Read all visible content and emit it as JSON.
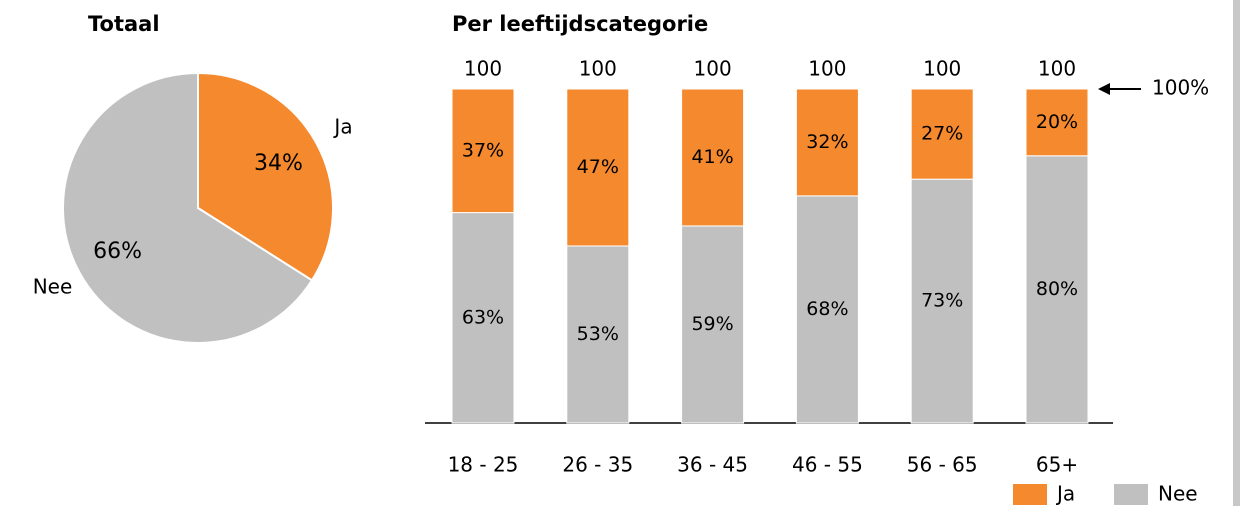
{
  "chart_data": [
    {
      "type": "pie",
      "title": "Totaal",
      "categories": [
        "Ja",
        "Nee"
      ],
      "values": [
        34,
        66
      ],
      "value_labels": [
        "34%",
        "66%"
      ],
      "colors": [
        "#f5892e",
        "#c0c0c0"
      ]
    },
    {
      "type": "bar",
      "stacked": true,
      "title": "Per leeftijdscategorie",
      "categories": [
        "18 - 25",
        "26 - 35",
        "36 - 45",
        "46 - 55",
        "56 - 65",
        "65+"
      ],
      "series": [
        {
          "name": "Ja",
          "color": "#f5892e",
          "values": [
            37,
            47,
            41,
            32,
            27,
            20
          ],
          "value_labels": [
            "37%",
            "47%",
            "41%",
            "32%",
            "27%",
            "20%"
          ]
        },
        {
          "name": "Nee",
          "color": "#c0c0c0",
          "values": [
            63,
            53,
            59,
            68,
            73,
            80
          ],
          "value_labels": [
            "63%",
            "53%",
            "59%",
            "68%",
            "73%",
            "80%"
          ]
        }
      ],
      "totals": [
        100,
        100,
        100,
        100,
        100,
        100
      ],
      "annotation": "100%",
      "ylim": [
        0,
        100
      ],
      "legend": "lower right"
    }
  ]
}
